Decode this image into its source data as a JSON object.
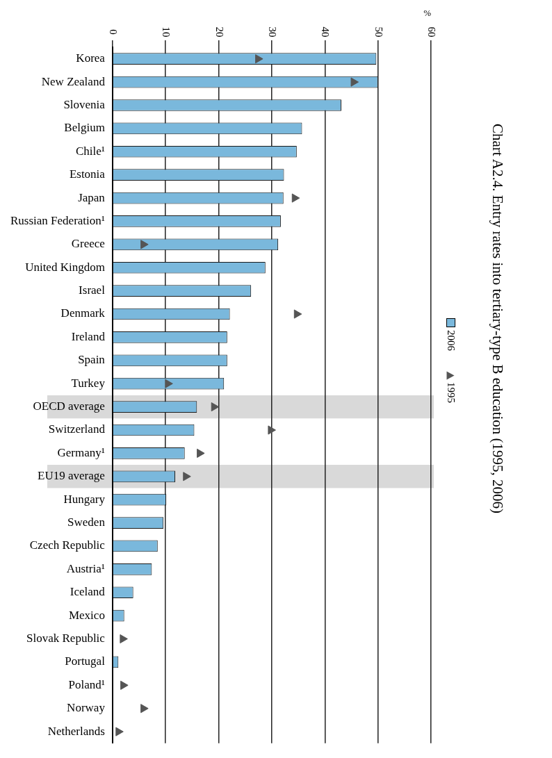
{
  "chart_data": {
    "type": "bar",
    "orientation": "horizontal",
    "title": "Chart A2.4. Entry rates into tertiary-type B education (1995, 2006)",
    "xlabel": "%",
    "categories": [
      "Korea",
      "New Zealand",
      "Slovenia",
      "Belgium",
      "Chile¹",
      "Estonia",
      "Japan",
      "Russian Federation¹",
      "Greece",
      "United Kingdom",
      "Israel",
      "Denmark",
      "Ireland",
      "Spain",
      "Turkey",
      "OECD average",
      "Switzerland",
      "Germany¹",
      "EU19 average",
      "Hungary",
      "Sweden",
      "Czech Republic",
      "Austria¹",
      "Iceland",
      "Mexico",
      "Slovak Republic",
      "Portugal",
      "Poland¹",
      "Norway",
      "Netherlands"
    ],
    "series": [
      {
        "name": "2006",
        "color": "#7ab8dc",
        "values": [
          49.7,
          50,
          43.1,
          35.7,
          34.7,
          32.3,
          32.2,
          31.7,
          31.2,
          28.8,
          26.1,
          22.1,
          21.6,
          21.6,
          21,
          15.9,
          15.4,
          13.6,
          11.8,
          10.1,
          9.6,
          8.5,
          7.4,
          3.9,
          2.2,
          null,
          1.1,
          null,
          null,
          null
        ]
      },
      {
        "name": "1995",
        "type": "scatter",
        "color": "#555555",
        "marker": "triangle",
        "values": [
          27.4,
          45.4,
          null,
          null,
          null,
          null,
          34.3,
          null,
          5.8,
          null,
          null,
          34.7,
          null,
          null,
          10.4,
          19.1,
          29.8,
          16.4,
          13.8,
          null,
          null,
          null,
          null,
          null,
          null,
          1.9,
          null,
          2,
          5.8,
          1.1
        ]
      }
    ],
    "xlim": [
      0,
      60
    ],
    "xticks": [
      0,
      10,
      20,
      30,
      40,
      50,
      60
    ],
    "grid": "x",
    "legend": "right",
    "bands": [
      {
        "axis": "y",
        "from": "OECD average",
        "to": "OECD average",
        "color": "#d9d9d9"
      },
      {
        "axis": "y",
        "from": "EU19 average",
        "to": "EU19 average",
        "color": "#d9d9d9"
      }
    ]
  }
}
